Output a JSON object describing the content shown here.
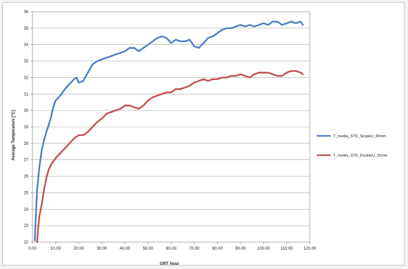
{
  "chart_data": {
    "type": "line",
    "title": "",
    "xlabel": "GRT hour",
    "ylabel": "Average Temperature [°C]",
    "xlim": [
      0,
      120
    ],
    "ylim": [
      22,
      36
    ],
    "x_ticks": [
      "0.00",
      "10.00",
      "20.00",
      "30.00",
      "40.00",
      "50.00",
      "60.00",
      "70.00",
      "80.00",
      "90.00",
      "100.00",
      "110.00",
      "120.00"
    ],
    "y_ticks": [
      "22",
      "23",
      "24",
      "25",
      "26",
      "27",
      "28",
      "29",
      "30",
      "31",
      "32",
      "33",
      "34",
      "35",
      "36"
    ],
    "grid": "horizontal",
    "legend_position": "right",
    "series": [
      {
        "name": "T_media_STD_SingleU_40mm",
        "color": "#4a7ec4",
        "x": [
          1,
          1.5,
          2,
          3,
          4,
          5,
          6,
          7,
          8,
          9,
          10,
          12,
          14,
          16,
          18,
          19,
          20,
          22,
          24,
          26,
          28,
          30,
          32,
          34,
          36,
          38,
          40,
          42,
          44,
          46,
          48,
          50,
          52,
          54,
          56,
          58,
          60,
          62,
          64,
          66,
          68,
          70,
          72,
          74,
          76,
          78,
          80,
          82,
          84,
          86,
          88,
          90,
          92,
          94,
          96,
          98,
          100,
          102,
          104,
          106,
          108,
          110,
          112,
          114,
          116,
          117
        ],
        "values": [
          22.1,
          23.8,
          25.2,
          26.6,
          27.6,
          28.2,
          28.7,
          29.1,
          29.6,
          30.2,
          30.6,
          30.9,
          31.3,
          31.6,
          31.9,
          32.0,
          31.7,
          31.8,
          32.3,
          32.8,
          33.0,
          33.1,
          33.2,
          33.3,
          33.4,
          33.5,
          33.6,
          33.8,
          33.8,
          33.6,
          33.8,
          34.0,
          34.2,
          34.4,
          34.5,
          34.4,
          34.1,
          34.3,
          34.2,
          34.2,
          34.3,
          33.9,
          33.8,
          34.1,
          34.4,
          34.5,
          34.7,
          34.9,
          35.0,
          35.0,
          35.1,
          35.2,
          35.1,
          35.2,
          35.1,
          35.2,
          35.3,
          35.2,
          35.4,
          35.4,
          35.2,
          35.3,
          35.4,
          35.3,
          35.4,
          35.2
        ]
      },
      {
        "name": "T_media_STD_DoubleU_32mm",
        "color": "#c0504d",
        "x": [
          2,
          2.5,
          3,
          4,
          5,
          6,
          7,
          8,
          9,
          10,
          12,
          14,
          16,
          18,
          20,
          22,
          24,
          26,
          28,
          30,
          32,
          34,
          36,
          38,
          40,
          42,
          44,
          46,
          48,
          50,
          52,
          54,
          56,
          58,
          60,
          62,
          64,
          66,
          68,
          70,
          72,
          74,
          76,
          78,
          80,
          82,
          84,
          86,
          88,
          90,
          92,
          94,
          96,
          98,
          100,
          102,
          104,
          106,
          108,
          110,
          112,
          114,
          116,
          117
        ],
        "values": [
          22.0,
          22.9,
          23.6,
          24.3,
          25.2,
          25.9,
          26.4,
          26.7,
          26.9,
          27.1,
          27.4,
          27.7,
          28.0,
          28.3,
          28.5,
          28.5,
          28.7,
          29.0,
          29.3,
          29.5,
          29.8,
          29.9,
          30.0,
          30.1,
          30.3,
          30.3,
          30.2,
          30.1,
          30.3,
          30.6,
          30.8,
          30.9,
          31.0,
          31.1,
          31.1,
          31.3,
          31.3,
          31.4,
          31.5,
          31.7,
          31.8,
          31.9,
          31.8,
          31.9,
          31.9,
          32.0,
          32.0,
          32.1,
          32.1,
          32.2,
          32.1,
          32.0,
          32.2,
          32.3,
          32.3,
          32.3,
          32.2,
          32.1,
          32.1,
          32.3,
          32.4,
          32.4,
          32.3,
          32.2
        ]
      }
    ]
  }
}
